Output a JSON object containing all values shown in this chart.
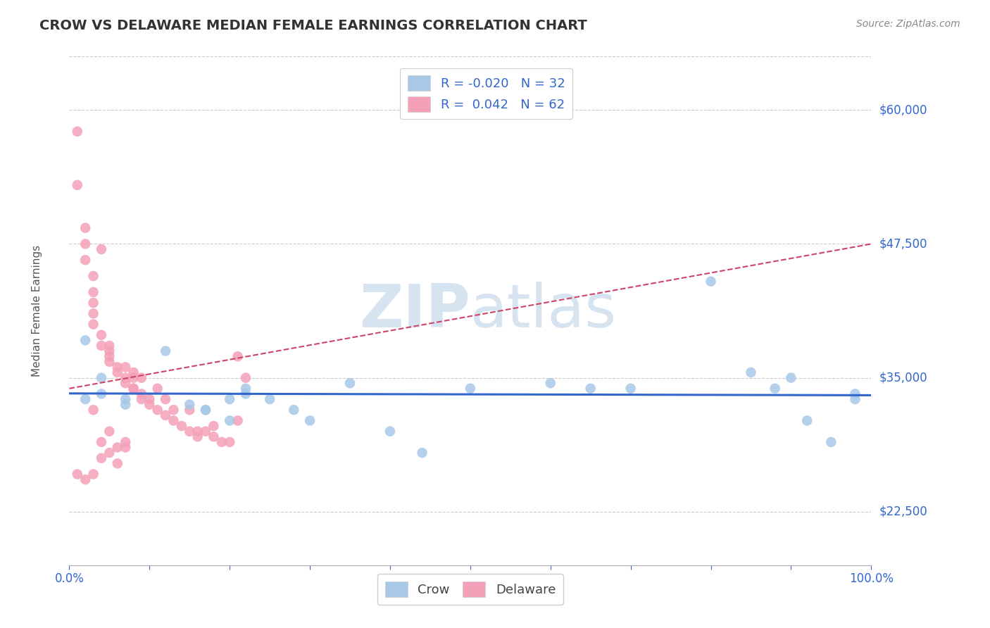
{
  "title": "CROW VS DELAWARE MEDIAN FEMALE EARNINGS CORRELATION CHART",
  "source_text": "Source: ZipAtlas.com",
  "ylabel": "Median Female Earnings",
  "xlim": [
    0,
    1
  ],
  "ylim": [
    17500,
    65000
  ],
  "yticks": [
    22500,
    35000,
    47500,
    60000
  ],
  "ytick_labels": [
    "$22,500",
    "$35,000",
    "$47,500",
    "$60,000"
  ],
  "xticks": [
    0,
    0.1,
    0.2,
    0.3,
    0.4,
    0.5,
    0.6,
    0.7,
    0.8,
    0.9,
    1.0
  ],
  "xtick_labels": [
    "0.0%",
    "",
    "",
    "",
    "",
    "",
    "",
    "",
    "",
    "",
    "100.0%"
  ],
  "crow_R": -0.02,
  "crow_N": 32,
  "delaware_R": 0.042,
  "delaware_N": 62,
  "crow_color": "#a8c8e8",
  "delaware_color": "#f4a0b8",
  "crow_line_color": "#3366cc",
  "delaware_line_color": "#cc4466",
  "background_color": "#ffffff",
  "grid_color": "#cccccc",
  "title_color": "#333333",
  "blue_color": "#3366cc",
  "watermark_color": "#d5e4f0",
  "crow_x": [
    0.02,
    0.04,
    0.07,
    0.12,
    0.15,
    0.17,
    0.2,
    0.22,
    0.22,
    0.25,
    0.28,
    0.3,
    0.35,
    0.4,
    0.44,
    0.5,
    0.6,
    0.65,
    0.7,
    0.8,
    0.85,
    0.88,
    0.9,
    0.92,
    0.95,
    0.98,
    0.02,
    0.04,
    0.07,
    0.17,
    0.2,
    0.98
  ],
  "crow_y": [
    38500,
    35000,
    33000,
    37500,
    32500,
    32000,
    33000,
    33500,
    34000,
    33000,
    32000,
    31000,
    34500,
    30000,
    28000,
    34000,
    34500,
    34000,
    34000,
    44000,
    35500,
    34000,
    35000,
    31000,
    29000,
    33500,
    33000,
    33500,
    32500,
    32000,
    31000,
    33000
  ],
  "delaware_x": [
    0.01,
    0.01,
    0.02,
    0.02,
    0.02,
    0.03,
    0.03,
    0.03,
    0.03,
    0.03,
    0.04,
    0.04,
    0.04,
    0.05,
    0.05,
    0.05,
    0.05,
    0.06,
    0.06,
    0.07,
    0.07,
    0.07,
    0.08,
    0.08,
    0.08,
    0.08,
    0.09,
    0.09,
    0.09,
    0.1,
    0.1,
    0.11,
    0.11,
    0.12,
    0.12,
    0.13,
    0.13,
    0.14,
    0.15,
    0.15,
    0.16,
    0.17,
    0.18,
    0.18,
    0.19,
    0.2,
    0.21,
    0.22,
    0.01,
    0.02,
    0.03,
    0.04,
    0.05,
    0.06,
    0.07,
    0.03,
    0.04,
    0.05,
    0.06,
    0.07,
    0.16,
    0.21
  ],
  "delaware_y": [
    58000,
    53000,
    49000,
    47500,
    46000,
    44500,
    43000,
    42000,
    41000,
    40000,
    47000,
    39000,
    38000,
    38000,
    37500,
    37000,
    36500,
    36000,
    35500,
    36000,
    35000,
    34500,
    34000,
    35000,
    35500,
    34000,
    33500,
    33000,
    35000,
    33000,
    32500,
    32000,
    34000,
    31500,
    33000,
    31000,
    32000,
    30500,
    30000,
    32000,
    30000,
    30000,
    29500,
    30500,
    29000,
    29000,
    37000,
    35000,
    26000,
    25500,
    26000,
    27500,
    28000,
    28500,
    29000,
    32000,
    29000,
    30000,
    27000,
    28500,
    29500,
    31000
  ]
}
